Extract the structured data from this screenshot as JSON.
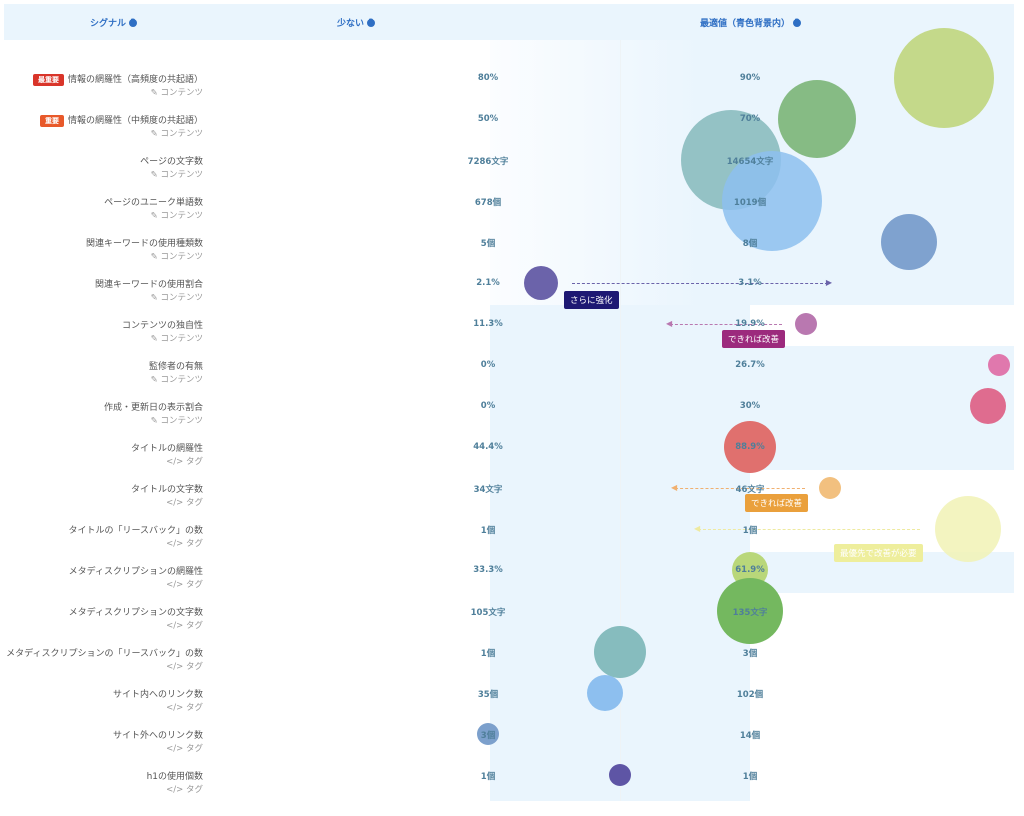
{
  "header": {
    "signal": "シグナル",
    "low": "少ない",
    "optimal": "最適値（青色背景内）",
    "help_icon": "?"
  },
  "rows": [
    {
      "badge": "最重要",
      "badge_color": "#d9352a",
      "label": "情報の網羅性（高頻度の共起語）",
      "category": "コンテンツ",
      "category_icon": "edit-icon",
      "low": "80%",
      "optimal": "90%"
    },
    {
      "badge": "重要",
      "badge_color": "#e8592a",
      "label": "情報の網羅性（中頻度の共起語）",
      "category": "コンテンツ",
      "category_icon": "edit-icon",
      "low": "50%",
      "optimal": "70%"
    },
    {
      "label": "ページの文字数",
      "category": "コンテンツ",
      "category_icon": "edit-icon",
      "low": "7286文字",
      "optimal": "14654文字"
    },
    {
      "label": "ページのユニーク単語数",
      "category": "コンテンツ",
      "category_icon": "edit-icon",
      "low": "678個",
      "optimal": "1019個"
    },
    {
      "label": "関連キーワードの使用種類数",
      "category": "コンテンツ",
      "category_icon": "edit-icon",
      "low": "5個",
      "optimal": "8個"
    },
    {
      "label": "関連キーワードの使用割合",
      "category": "コンテンツ",
      "category_icon": "edit-icon",
      "low": "2.1%",
      "optimal": "3.1%"
    },
    {
      "label": "コンテンツの独自性",
      "category": "コンテンツ",
      "category_icon": "edit-icon",
      "low": "11.3%",
      "optimal": "19.9%"
    },
    {
      "label": "監修者の有無",
      "category": "コンテンツ",
      "category_icon": "edit-icon",
      "low": "0%",
      "optimal": "26.7%"
    },
    {
      "label": "作成・更新日の表示割合",
      "category": "コンテンツ",
      "category_icon": "edit-icon",
      "low": "0%",
      "optimal": "30%"
    },
    {
      "label": "タイトルの網羅性",
      "category": "タグ",
      "category_icon": "code-icon",
      "low": "44.4%",
      "optimal": "88.9%"
    },
    {
      "label": "タイトルの文字数",
      "category": "タグ",
      "category_icon": "code-icon",
      "low": "34文字",
      "optimal": "46文字"
    },
    {
      "label": "タイトルの「リースバック」の数",
      "category": "タグ",
      "category_icon": "code-icon",
      "low": "1個",
      "optimal": "1個"
    },
    {
      "label": "メタディスクリプションの網羅性",
      "category": "タグ",
      "category_icon": "code-icon",
      "low": "33.3%",
      "optimal": "61.9%"
    },
    {
      "label": "メタディスクリプションの文字数",
      "category": "タグ",
      "category_icon": "code-icon",
      "low": "105文字",
      "optimal": "135文字"
    },
    {
      "label": "メタディスクリプションの「リースバック」の数",
      "category": "タグ",
      "category_icon": "code-icon",
      "low": "1個",
      "optimal": "3個"
    },
    {
      "label": "サイト内へのリンク数",
      "category": "タグ",
      "category_icon": "code-icon",
      "low": "35個",
      "optimal": "102個"
    },
    {
      "label": "サイト外へのリンク数",
      "category": "タグ",
      "category_icon": "code-icon",
      "low": "3個",
      "optimal": "14個"
    },
    {
      "label": "h1の使用個数",
      "category": "タグ",
      "category_icon": "code-icon",
      "low": "1個",
      "optimal": "1個"
    }
  ],
  "bubble_colors": [
    "#c4d98a",
    "#86bb84",
    "#8fbfc2",
    "#8dbfef",
    "#7fa2cf",
    "#6b63aa",
    "#b978b0",
    "#e078ad",
    "#df6c8f",
    "#e0706e",
    "#f2c07f",
    "#f1f2b5",
    "#b9d77a",
    "#74b85f",
    "#86bcbe",
    "#8dbfef",
    "#7ca0cc",
    "#5e55a5"
  ],
  "callouts": [
    {
      "text": "さらに強化",
      "color": "#1d1873",
      "arrow_color": "#6b63aa"
    },
    {
      "text": "できれば改善",
      "color": "#9c2a7d",
      "arrow_color": "#b978b0"
    },
    {
      "text": "できれば改善",
      "color": "#eaa03c",
      "arrow_color": "#f0b070"
    },
    {
      "text": "最優先で改善が必要",
      "color": "#eeee9c",
      "arrow_color": "#eeeaa0"
    }
  ]
}
